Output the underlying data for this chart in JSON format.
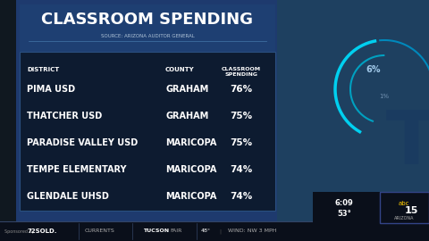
{
  "title": "CLASSROOM SPENDING",
  "source": "SOURCE: ARIZONA AUDITOR GENERAL",
  "col_headers": [
    "DISTRICT",
    "COUNTY",
    "CLASSROOM\nSPENDING"
  ],
  "rows": [
    [
      "PIMA USD",
      "GRAHAM",
      "76%"
    ],
    [
      "THATCHER USD",
      "GRAHAM",
      "75%"
    ],
    [
      "PARADISE VALLEY USD",
      "MARICOPA",
      "75%"
    ],
    [
      "TEMPE ELEMENTARY",
      "MARICOPA",
      "74%"
    ],
    [
      "GLENDALE UHSD",
      "MARICOPA",
      "74%"
    ]
  ],
  "bg_far_left": "#1a2a40",
  "bg_main": "#1e3a6e",
  "bg_table": "#0d1b30",
  "bg_title_strip": "#1e3f72",
  "bg_right_panel": "#1a5070",
  "text_white": "#ffffff",
  "text_source": "#b0c4d8",
  "ticker_bg": "#0a0f1a",
  "ticker_text": "#cccccc",
  "arc_color1": "#00c8e0",
  "arc_color2": "#0080b0",
  "six_pct_color": "#a0c8e8",
  "one_pct_color": "#7090b0"
}
